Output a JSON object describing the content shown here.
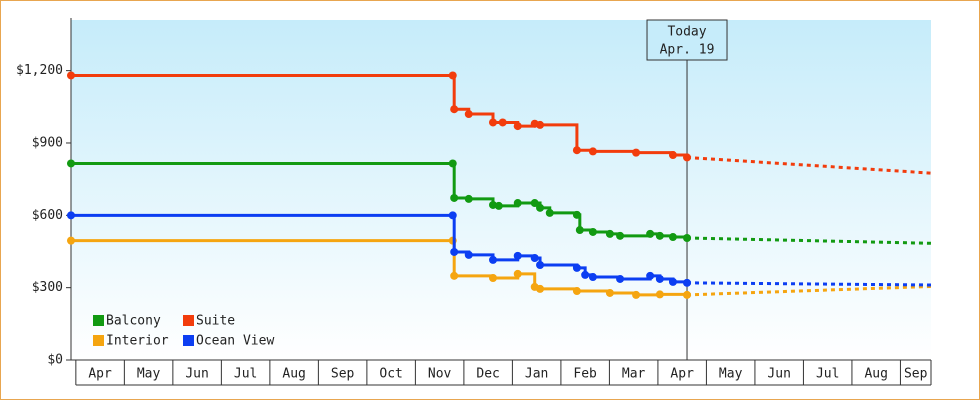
{
  "chart_data": {
    "type": "step-line",
    "xlim": [
      -0.1,
      17.63
    ],
    "xticks": [
      {
        "value": 0,
        "label": "Apr"
      },
      {
        "value": 1,
        "label": "May"
      },
      {
        "value": 2,
        "label": "Jun"
      },
      {
        "value": 3,
        "label": "Jul"
      },
      {
        "value": 4,
        "label": "Aug"
      },
      {
        "value": 5,
        "label": "Sep"
      },
      {
        "value": 6,
        "label": "Oct"
      },
      {
        "value": 7,
        "label": "Nov"
      },
      {
        "value": 8,
        "label": "Dec"
      },
      {
        "value": 9,
        "label": "Jan"
      },
      {
        "value": 10,
        "label": "Feb"
      },
      {
        "value": 11,
        "label": "Mar"
      },
      {
        "value": 12,
        "label": "Apr"
      },
      {
        "value": 13,
        "label": "May"
      },
      {
        "value": 14,
        "label": "Jun"
      },
      {
        "value": 15,
        "label": "Jul"
      },
      {
        "value": 16,
        "label": "Aug"
      },
      {
        "value": 17,
        "label": "Sep"
      }
    ],
    "ylim": [
      0,
      1410
    ],
    "yticks": [
      {
        "value": 0,
        "label": "$0"
      },
      {
        "value": 300,
        "label": "$300"
      },
      {
        "value": 600,
        "label": "$600"
      },
      {
        "value": 900,
        "label": "$900"
      },
      {
        "value": 1200,
        "label": "$1,200"
      }
    ],
    "legend": "lower-left",
    "annotation": {
      "x": 12.6,
      "lines": [
        "Today",
        "Apr. 19"
      ]
    },
    "series": [
      {
        "name": "Balcony",
        "color": "#129a12",
        "x": [
          -0.1,
          7.77,
          7.8,
          8.1,
          8.6,
          8.72,
          9.11,
          9.46,
          9.57,
          9.77,
          10.33,
          10.39,
          10.66,
          11.01,
          11.22,
          11.84,
          12.04,
          12.31,
          12.6
        ],
        "values": [
          815,
          815,
          672,
          668,
          643,
          639,
          651,
          651,
          631,
          610,
          602,
          539,
          531,
          523,
          515,
          523,
          515,
          510,
          506
        ],
        "forecast": {
          "x": [
            12.6,
            17.63
          ],
          "values": [
            506,
            484
          ]
        }
      },
      {
        "name": "Suite",
        "color": "#f23c0c",
        "x": [
          -0.1,
          7.77,
          7.8,
          8.1,
          8.6,
          8.8,
          9.11,
          9.46,
          9.57,
          10.33,
          10.66,
          11.55,
          12.31,
          12.6
        ],
        "values": [
          1180,
          1180,
          1040,
          1020,
          985,
          985,
          970,
          980,
          975,
          870,
          865,
          860,
          850,
          840
        ],
        "forecast": {
          "x": [
            12.6,
            17.63
          ],
          "values": [
            840,
            775
          ]
        }
      },
      {
        "name": "Interior",
        "color": "#f5a510",
        "x": [
          -0.1,
          7.77,
          7.8,
          8.6,
          9.11,
          9.46,
          9.57,
          10.33,
          11.01,
          11.55,
          12.04,
          12.6
        ],
        "values": [
          495,
          495,
          349,
          340,
          357,
          303,
          295,
          286,
          278,
          270,
          272,
          270
        ],
        "forecast": {
          "x": [
            12.6,
            17.63
          ],
          "values": [
            270,
            305
          ]
        }
      },
      {
        "name": "Ocean View",
        "color": "#0c3ef2",
        "x": [
          -0.1,
          7.77,
          7.8,
          8.1,
          8.6,
          9.11,
          9.46,
          9.57,
          10.33,
          10.5,
          10.66,
          11.22,
          11.84,
          12.04,
          12.31,
          12.6
        ],
        "values": [
          600,
          600,
          448,
          436,
          415,
          432,
          423,
          394,
          382,
          353,
          344,
          336,
          349,
          336,
          324,
          320
        ],
        "forecast": {
          "x": [
            12.6,
            17.63
          ],
          "values": [
            320,
            311
          ]
        }
      }
    ]
  }
}
